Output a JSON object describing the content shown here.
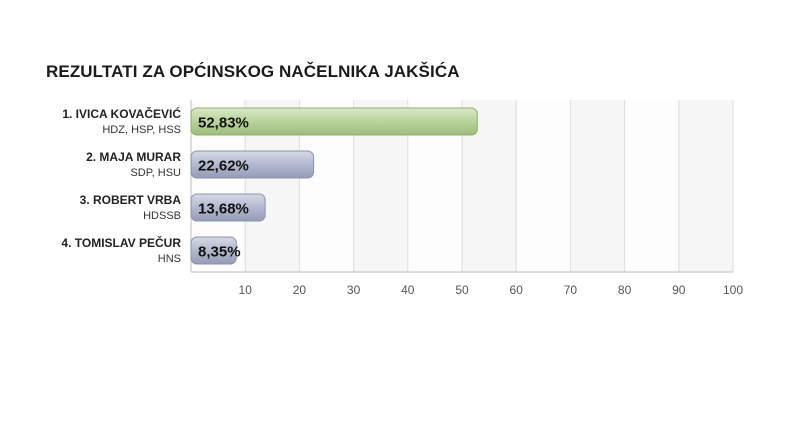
{
  "chart_data": {
    "type": "bar",
    "orientation": "horizontal",
    "title": "REZULTATI ZA OPĆINSKOG NAČELNIKA JAKŠIĆA",
    "xlabel": "",
    "ylabel": "",
    "xlim": [
      0,
      100
    ],
    "ticks": [
      10,
      20,
      30,
      40,
      50,
      60,
      70,
      80,
      90,
      100
    ],
    "grid": true,
    "categories": [
      {
        "name": "1. IVICA KOVAČEVIĆ",
        "party": "HDZ, HSP, HSS",
        "value": 52.83,
        "label": "52,83%",
        "color": "#b9d39a"
      },
      {
        "name": "2. MAJA MURAR",
        "party": "SDP, HSU",
        "value": 22.62,
        "label": "22,62%",
        "color": "#b2b8ce"
      },
      {
        "name": "3. ROBERT VRBA",
        "party": "HDSSB",
        "value": 13.68,
        "label": "13,68%",
        "color": "#b2b8ce"
      },
      {
        "name": "4. TOMISLAV PEČUR",
        "party": "HNS",
        "value": 8.35,
        "label": "8,35%",
        "color": "#b2b8ce"
      }
    ]
  }
}
